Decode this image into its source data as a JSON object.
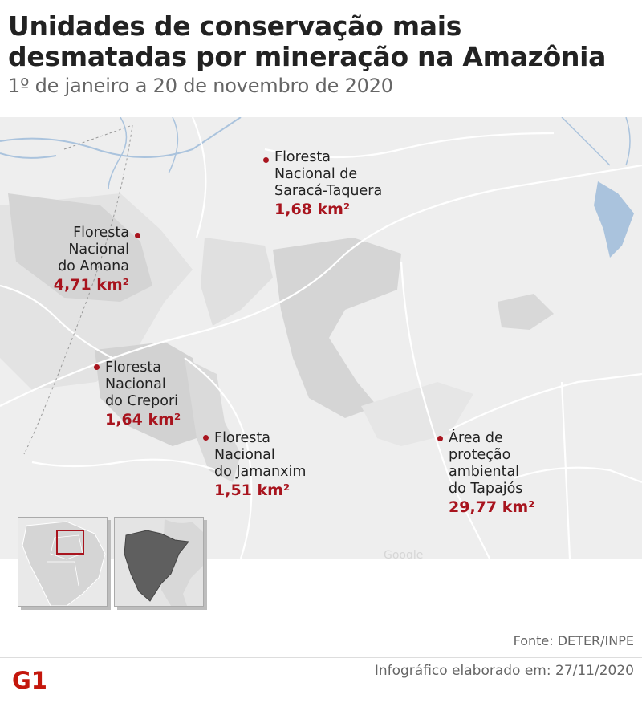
{
  "header": {
    "title_line1": "Unidades de conservação mais",
    "title_line2": "desmatadas por mineração na Amazônia",
    "subtitle": "1º de janeiro a 20 de novembro de 2020"
  },
  "areas": [
    {
      "name_lines": [
        "Floresta",
        "Nacional de",
        "Saracá-Taquera"
      ],
      "value": "1,68 km²",
      "value_km2": 1.68
    },
    {
      "name_lines": [
        "Floresta",
        "Nacional",
        "do Amana"
      ],
      "value": "4,71 km²",
      "value_km2": 4.71
    },
    {
      "name_lines": [
        "Floresta",
        "Nacional",
        "do Crepori"
      ],
      "value": "1,64 km²",
      "value_km2": 1.64
    },
    {
      "name_lines": [
        "Floresta",
        "Nacional",
        "do Jamanxim"
      ],
      "value": "1,51 km²",
      "value_km2": 1.51
    },
    {
      "name_lines": [
        "Área de",
        "proteção",
        "ambiental",
        "do Tapajós"
      ],
      "value": "29,77 km²",
      "value_km2": 29.77
    }
  ],
  "map": {
    "watermark": "Google",
    "colors": {
      "background": "#eeeeee",
      "land": "#e2e2e2",
      "protected_area": "#d3d3d3",
      "water": "#aac3dd",
      "roads": "#ffffff",
      "marker": "#a8141e"
    }
  },
  "footer": {
    "source": "Fonte:  DETER/INPE",
    "credit": "Infográfico elaborado em: 27/11/2020",
    "logo_text": "G1"
  }
}
